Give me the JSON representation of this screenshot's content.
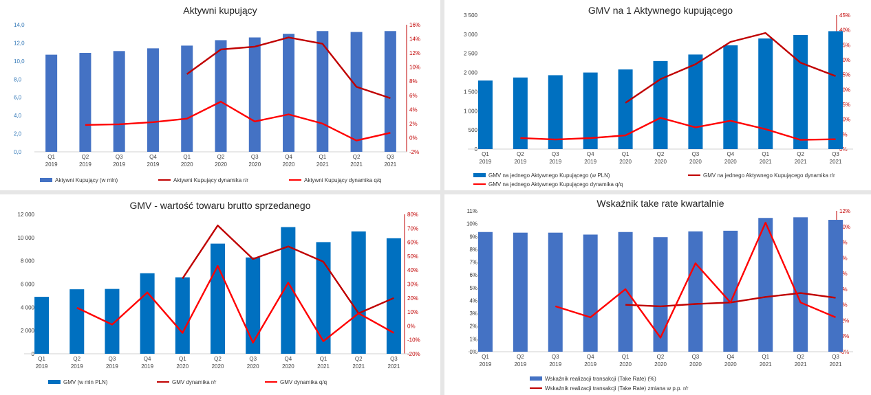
{
  "categories": [
    "Q1\n2019",
    "Q2\n2019",
    "Q3\n2019",
    "Q4\n2019",
    "Q1\n2020",
    "Q2\n2020",
    "Q3\n2020",
    "Q4\n2020",
    "Q1\n2021",
    "Q2\n2021",
    "Q3\n2021"
  ],
  "colors": {
    "bar_light": "#4472c4",
    "bar_dark": "#0070c0",
    "line_rr": "#c00000",
    "line_qq": "#ff0000",
    "left_axis_blue": "#2e75b6",
    "right_axis_red": "#c00000"
  },
  "chart_data": [
    {
      "type": "bar",
      "title": "Aktywni kupujący",
      "left_ticks": [
        "0,0",
        "2,0",
        "4,0",
        "6,0",
        "8,0",
        "10,0",
        "12,0",
        "14,0"
      ],
      "right_ticks": [
        "-2%",
        "0%",
        "2%",
        "4%",
        "6%",
        "8%",
        "10%",
        "12%",
        "14%",
        "16%"
      ],
      "ylim": [
        0,
        14
      ],
      "y2lim": [
        -2,
        16
      ],
      "grid": false,
      "legend": "bottom",
      "bars": {
        "name": "Aktywni Kupujący (w mln)",
        "values": [
          10.7,
          10.9,
          11.1,
          11.4,
          11.7,
          12.3,
          12.6,
          13.0,
          13.3,
          13.2,
          13.3
        ]
      },
      "lines": [
        {
          "name": "Aktywni Kupujący dynamika r/r",
          "values": [
            null,
            null,
            null,
            null,
            9.0,
            12.5,
            12.9,
            14.2,
            13.3,
            7.2,
            5.6
          ]
        },
        {
          "name": "Aktywni Kupujący dynamika q/q",
          "values": [
            null,
            1.8,
            1.9,
            2.2,
            2.7,
            5.1,
            2.3,
            3.3,
            2.0,
            -0.4,
            0.7
          ]
        }
      ]
    },
    {
      "type": "bar",
      "title": "GMV na 1 Aktywnego kupującego",
      "left_ticks": [
        "0",
        "500",
        "1 000",
        "1 500",
        "2 000",
        "2 500",
        "3 000",
        "3 500"
      ],
      "right_ticks": [
        "0%",
        "5%",
        "10%",
        "15%",
        "20%",
        "25%",
        "30%",
        "35%",
        "40%",
        "45%"
      ],
      "ylim": [
        0,
        3500
      ],
      "y2lim": [
        0,
        45
      ],
      "grid": false,
      "legend": "bottom",
      "bars": {
        "name": "GMV na jednego Aktywnego Kupującego (w PLN)",
        "values": [
          1790,
          1870,
          1930,
          2000,
          2080,
          2300,
          2470,
          2710,
          2890,
          2980,
          3080
        ]
      },
      "lines": [
        {
          "name": "GMV na jednego Aktywnego Kupującego dynamika r/r",
          "values": [
            null,
            null,
            null,
            null,
            15.5,
            23.5,
            28.5,
            36.0,
            39.0,
            29.0,
            24.5
          ]
        },
        {
          "name": "GMV na jednego Aktywnego Kupującego dynamika q/q",
          "values": [
            null,
            3.7,
            3.2,
            3.7,
            4.6,
            10.5,
            7.3,
            9.5,
            6.7,
            3.1,
            3.3
          ]
        }
      ]
    },
    {
      "type": "bar",
      "title": "GMV - wartość towaru brutto sprzedanego",
      "left_ticks": [
        "0",
        "2 000",
        "4 000",
        "6 000",
        "8 000",
        "10 000",
        "12 000"
      ],
      "right_ticks": [
        "-20%",
        "-10%",
        "0%",
        "10%",
        "20%",
        "30%",
        "40%",
        "50%",
        "60%",
        "70%",
        "80%"
      ],
      "ylim": [
        0,
        12000
      ],
      "y2lim": [
        -20,
        80
      ],
      "grid": false,
      "legend": "bottom",
      "bars": {
        "name": "GMV (w mln PLN)",
        "values": [
          4900,
          5550,
          5580,
          6930,
          6580,
          9480,
          8290,
          10900,
          9610,
          10530,
          9940
        ]
      },
      "lines": [
        {
          "name": "GMV dynamika r/r",
          "values": [
            null,
            null,
            null,
            null,
            34,
            72,
            48,
            57,
            46,
            9,
            20
          ]
        },
        {
          "name": "GMV dynamika q/q",
          "values": [
            null,
            13,
            1,
            24,
            -5,
            43,
            -12,
            31,
            -11,
            9,
            -5
          ]
        }
      ]
    },
    {
      "type": "bar",
      "title": "Wskaźnik take rate kwartalnie",
      "left_ticks": [
        "0%",
        "1%",
        "2%",
        "3%",
        "4%",
        "5%",
        "6%",
        "7%",
        "8%",
        "9%",
        "10%",
        "11%"
      ],
      "right_ticks": [
        "-6%",
        "-4%",
        "-2%",
        "0%",
        "2%",
        "4%",
        "6%",
        "8%",
        "10%",
        "12%"
      ],
      "ylim": [
        0,
        11
      ],
      "y2lim": [
        -6,
        12
      ],
      "grid": false,
      "legend": "bottom",
      "bars": {
        "name": "Wskaźnik realizacji transakcji (Take Rate) (%)",
        "values": [
          9.35,
          9.3,
          9.3,
          9.15,
          9.35,
          8.95,
          9.4,
          9.45,
          10.45,
          10.5,
          10.3
        ]
      },
      "lines": [
        {
          "name": "Wskaźnik realizacji transakcji (Take Rate) zmiana w p.p. r/r",
          "values": [
            null,
            null,
            null,
            null,
            0.0,
            -0.2,
            0.1,
            0.3,
            1.0,
            1.5,
            0.9
          ]
        },
        {
          "name": "",
          "values": [
            null,
            null,
            -0.2,
            -1.6,
            2.0,
            -4.2,
            5.3,
            0.3,
            10.5,
            0.3,
            -1.6
          ]
        }
      ]
    }
  ]
}
